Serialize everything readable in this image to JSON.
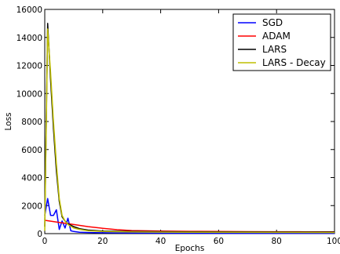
{
  "chart_data": {
    "type": "line",
    "xlabel": "Epochs",
    "ylabel": "Loss",
    "xlim": [
      0,
      100
    ],
    "ylim": [
      0,
      16000
    ],
    "xticks": [
      0,
      20,
      40,
      60,
      80,
      100
    ],
    "yticks": [
      0,
      2000,
      4000,
      6000,
      8000,
      10000,
      12000,
      14000,
      16000
    ],
    "grid": false,
    "legend_position": "top-right",
    "series": [
      {
        "name": "SGD",
        "color": "#0000ff",
        "points": [
          [
            0,
            1300
          ],
          [
            1,
            2500
          ],
          [
            2,
            1300
          ],
          [
            3,
            1300
          ],
          [
            4,
            1700
          ],
          [
            5,
            300
          ],
          [
            6,
            900
          ],
          [
            7,
            400
          ],
          [
            8,
            1100
          ],
          [
            9,
            200
          ],
          [
            10,
            150
          ],
          [
            12,
            100
          ],
          [
            15,
            80
          ],
          [
            20,
            60
          ],
          [
            30,
            40
          ],
          [
            50,
            30
          ],
          [
            70,
            25
          ],
          [
            100,
            20
          ]
        ]
      },
      {
        "name": "ADAM",
        "color": "#ff0000",
        "points": [
          [
            0,
            950
          ],
          [
            5,
            800
          ],
          [
            10,
            650
          ],
          [
            15,
            500
          ],
          [
            20,
            380
          ],
          [
            25,
            280
          ],
          [
            30,
            220
          ],
          [
            40,
            180
          ],
          [
            50,
            160
          ],
          [
            60,
            150
          ],
          [
            70,
            140
          ],
          [
            80,
            135
          ],
          [
            90,
            130
          ],
          [
            100,
            125
          ]
        ]
      },
      {
        "name": "LARS",
        "color": "#000000",
        "points": [
          [
            0,
            500
          ],
          [
            1,
            15000
          ],
          [
            2,
            11000
          ],
          [
            3,
            7500
          ],
          [
            4,
            4500
          ],
          [
            5,
            2300
          ],
          [
            6,
            1200
          ],
          [
            7,
            900
          ],
          [
            8,
            700
          ],
          [
            10,
            500
          ],
          [
            12,
            350
          ],
          [
            15,
            250
          ],
          [
            20,
            180
          ],
          [
            30,
            150
          ],
          [
            50,
            130
          ],
          [
            70,
            120
          ],
          [
            100,
            110
          ]
        ]
      },
      {
        "name": "LARS - Decay",
        "color": "#bfbf00",
        "points": [
          [
            0,
            200
          ],
          [
            1,
            14600
          ],
          [
            2,
            11500
          ],
          [
            3,
            8000
          ],
          [
            4,
            5000
          ],
          [
            5,
            2500
          ],
          [
            6,
            1300
          ],
          [
            7,
            900
          ],
          [
            8,
            650
          ],
          [
            10,
            400
          ],
          [
            12,
            300
          ],
          [
            15,
            200
          ],
          [
            20,
            150
          ],
          [
            30,
            120
          ],
          [
            50,
            100
          ],
          [
            70,
            90
          ],
          [
            100,
            80
          ]
        ]
      }
    ]
  }
}
